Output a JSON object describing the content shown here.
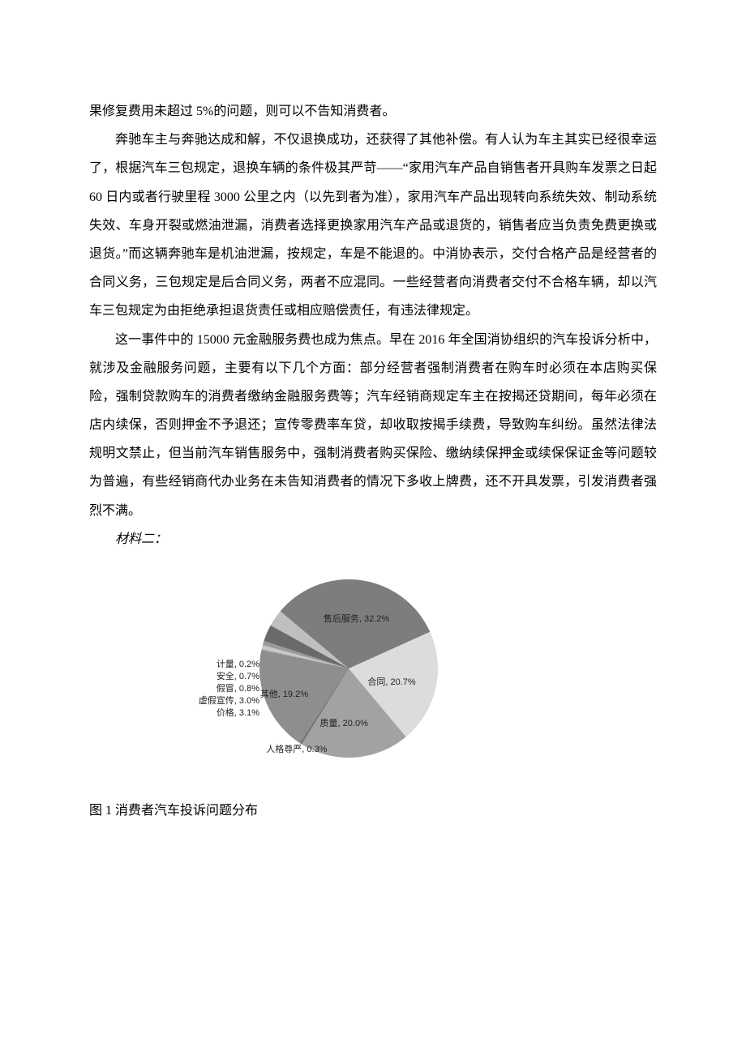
{
  "paragraphs": {
    "p0": "果修复费用未超过 5%的问题，则可以不告知消费者。",
    "p1": "奔驰车主与奔驰达成和解，不仅退换成功，还获得了其他补偿。有人认为车主其实已经很幸运了，根据汽车三包规定，退换车辆的条件极其严苛——“家用汽车产品自销售者开具购车发票之日起 60 日内或者行驶里程 3000 公里之内（以先到者为准），家用汽车产品出现转向系统失效、制动系统失效、车身开裂或燃油泄漏，消费者选择更换家用汽车产品或退货的，销售者应当负责免费更换或退货。”而这辆奔驰车是机油泄漏，按规定，车是不能退的。中消协表示，交付合格产品是经营者的合同义务，三包规定是后合同义务，两者不应混同。一些经营者向消费者交付不合格车辆，却以汽车三包规定为由拒绝承担退货责任或相应赔偿责任，有违法律规定。",
    "p2": "这一事件中的 15000 元金融服务费也成为焦点。早在 2016 年全国消协组织的汽车投诉分析中，就涉及金融服务问题，主要有以下几个方面：部分经营者强制消费者在购车时必须在本店购买保险，强制贷款购车的消费者缴纳金融服务费等；汽车经销商规定车主在按揭还贷期间，每年必须在店内续保，否则押金不予退还；宣传零费率车贷，却收取按揭手续费，导致购车纠纷。虽然法律法规明文禁止，但当前汽车销售服务中，强制消费者购买保险、缴纳续保押金或续保保证金等问题较为普遍，有些经销商代办业务在未告知消费者的情况下多收上牌费，还不开具发票，引发消费者强烈不满。",
    "material_label": "材料二：",
    "caption": "图 1 消费者汽车投诉问题分布"
  },
  "chart": {
    "type": "pie",
    "background_color": "#ffffff",
    "label_fontsize": 11,
    "label_color": "#222222",
    "slices": [
      {
        "name": "售后服务",
        "value": 32.2,
        "color": "#7d7d7d",
        "label": "售后服务, 32.2%"
      },
      {
        "name": "合同",
        "value": 20.7,
        "color": "#dcdcdc",
        "label": "合同, 20.7%"
      },
      {
        "name": "质量",
        "value": 20.0,
        "color": "#a2a2a2",
        "label": "质量, 20.0%"
      },
      {
        "name": "人格尊严",
        "value": 0.3,
        "color": "#707070",
        "label": "人格尊严, 0.3%"
      },
      {
        "name": "其他",
        "value": 19.2,
        "color": "#8e8e8e",
        "label": "其他, 19.2%"
      },
      {
        "name": "计量",
        "value": 0.2,
        "color": "#b0b0b0",
        "label": "计量, 0.2%"
      },
      {
        "name": "安全",
        "value": 0.7,
        "color": "#c8c8c8",
        "label": "安全, 0.7%"
      },
      {
        "name": "假冒",
        "value": 0.8,
        "color": "#9a9a9a",
        "label": "假冒, 0.8%"
      },
      {
        "name": "虚假宣传",
        "value": 3.0,
        "color": "#6a6a6a",
        "label": "虚假宣传, 3.0%"
      },
      {
        "name": "价格",
        "value": 3.1,
        "color": "#bfbfbf",
        "label": "价格, 3.1%"
      }
    ],
    "start_angle_deg": -50
  }
}
